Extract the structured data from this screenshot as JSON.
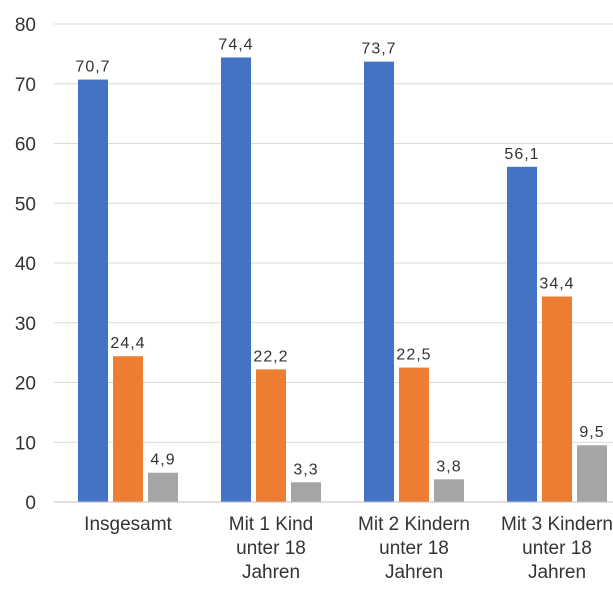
{
  "chart_data": {
    "type": "bar",
    "categories": [
      [
        "Insgesamt"
      ],
      [
        "Mit 1 Kind",
        "unter 18",
        "Jahren"
      ],
      [
        "Mit 2 Kindern",
        "unter 18",
        "Jahren"
      ],
      [
        "Mit 3 Kindern",
        "unter 18",
        "Jahren"
      ]
    ],
    "series": [
      {
        "values": [
          70.7,
          74.4,
          73.7,
          56.1
        ],
        "labels": [
          "70,7",
          "74,4",
          "73,7",
          "56,1"
        ],
        "color": "#4472C4"
      },
      {
        "values": [
          24.4,
          22.2,
          22.5,
          34.4
        ],
        "labels": [
          "24,4",
          "22,2",
          "22,5",
          "34,4"
        ],
        "color": "#ED7D31"
      },
      {
        "values": [
          4.9,
          3.3,
          3.8,
          9.5
        ],
        "labels": [
          "4,9",
          "3,3",
          "3,8",
          "9,5"
        ],
        "color": "#A5A5A5"
      }
    ],
    "ylim": [
      0,
      80
    ],
    "yticks": [
      "0",
      "10",
      "20",
      "30",
      "40",
      "50",
      "60",
      "70",
      "80"
    ],
    "grid": true,
    "legend": "none"
  }
}
